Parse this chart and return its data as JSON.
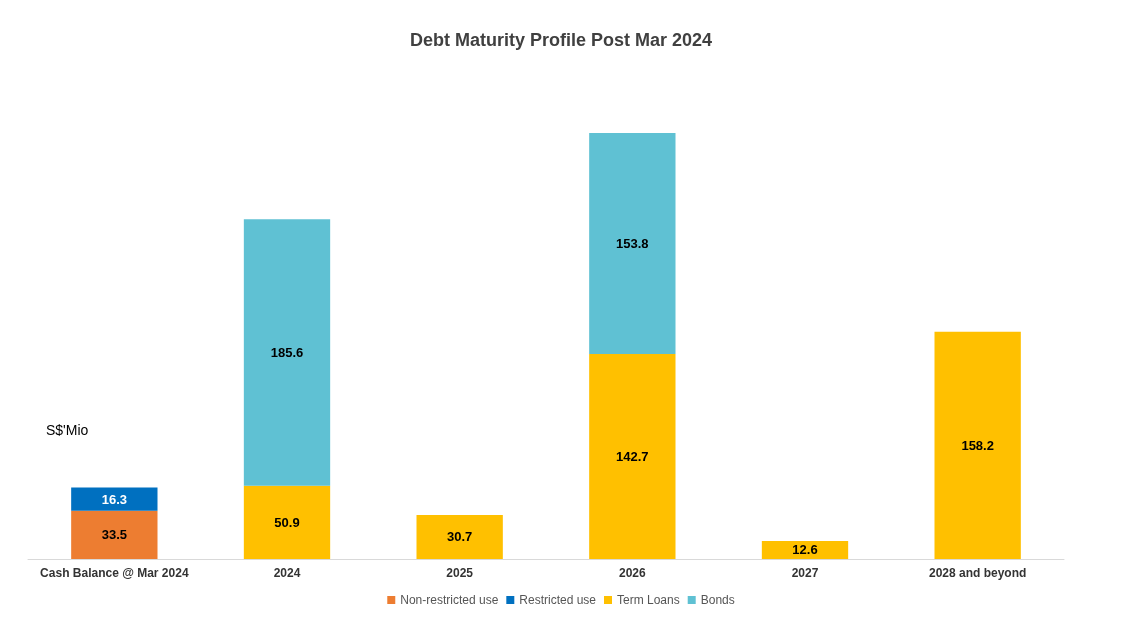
{
  "chart_data": {
    "type": "bar",
    "title": "Debt Maturity Profile Post Mar 2024",
    "ylabel": "S$'Mio",
    "categories": [
      "Cash Balance @ Mar 2024",
      "2024",
      "2025",
      "2026",
      "2027",
      "2028 and beyond"
    ],
    "stacked": true,
    "data_labels": true,
    "legend": "bottom",
    "grid": false,
    "series": [
      {
        "name": "Non-restricted use",
        "color": "#ed7d31",
        "values": [
          33.5,
          null,
          null,
          null,
          null,
          null
        ]
      },
      {
        "name": "Restricted use",
        "color": "#0070c0",
        "values": [
          16.3,
          null,
          null,
          null,
          null,
          null
        ]
      },
      {
        "name": "Term Loans",
        "color": "#ffc000",
        "values": [
          null,
          50.9,
          30.7,
          142.7,
          12.6,
          158.2
        ]
      },
      {
        "name": "Bonds",
        "color": "#5fc1d3",
        "values": [
          null,
          185.6,
          null,
          153.8,
          null,
          null
        ]
      }
    ]
  }
}
